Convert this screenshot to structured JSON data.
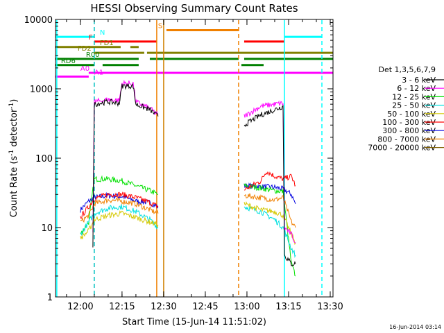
{
  "chart_data": {
    "type": "line",
    "title": "HESSI Observing Summary Count Rates",
    "xlabel": "Start Time (15-Jun-14 11:51:02)",
    "ylabel_main": "Count Rate (s",
    "ylabel_sup1": "-1",
    "ylabel_mid": " detector",
    "ylabel_sup2": "-1",
    "ylabel_end": ")",
    "footer_date": "16-Jun-2014 03:14",
    "y_scale": "log",
    "x_range": [
      "11:51:02",
      "13:31:00"
    ],
    "y_range": [
      1,
      10000
    ],
    "x_ticks": [
      {
        "label": "12:00",
        "t": "12:00"
      },
      {
        "label": "12:15",
        "t": "12:15"
      },
      {
        "label": "12:30",
        "t": "12:30"
      },
      {
        "label": "12:45",
        "t": "12:45"
      },
      {
        "label": "13:00",
        "t": "13:00"
      },
      {
        "label": "13:15",
        "t": "13:15"
      },
      {
        "label": "13:30",
        "t": "13:30"
      }
    ],
    "y_ticks": [
      {
        "label": "1",
        "v": 1
      },
      {
        "label": "10",
        "v": 10
      },
      {
        "label": "100",
        "v": 100
      },
      {
        "label": "1000",
        "v": 1000
      },
      {
        "label": "10000",
        "v": 10000
      }
    ],
    "legend": {
      "position": "right",
      "title": "Det 1,3,5,6,7,9",
      "entries": [
        {
          "label": "3 - 6 keV",
          "color": "#000000"
        },
        {
          "label": "6 - 12 keV",
          "color": "#ff00ff"
        },
        {
          "label": "12 - 25 keV",
          "color": "#00e000"
        },
        {
          "label": "25 - 50 keV",
          "color": "#00e0e0"
        },
        {
          "label": "50 - 100 keV",
          "color": "#d4c800"
        },
        {
          "label": "100 - 300 keV",
          "color": "#ff0000"
        },
        {
          "label": "300 - 800 keV",
          "color": "#0000e0"
        },
        {
          "label": "800 - 7000 keV",
          "color": "#f08000"
        },
        {
          "label": "7000 - 20000 keV",
          "color": "#806000"
        }
      ]
    },
    "series": [
      {
        "color": "#0000e0",
        "segments": [
          [
            [
              "12:00",
              "18"
            ],
            [
              "12:03",
              "24"
            ],
            [
              "12:05",
              "27"
            ],
            [
              "12:10",
              "29"
            ],
            [
              "12:15",
              "28"
            ],
            [
              "12:20",
              "24"
            ],
            [
              "12:25",
              "23"
            ],
            [
              "12:28",
              "20"
            ]
          ],
          [
            [
              "12:59",
              "40"
            ],
            [
              "13:05",
              "39"
            ],
            [
              "13:10",
              "38"
            ],
            [
              "13:13",
              "36"
            ],
            [
              "13:16",
              "30"
            ],
            [
              "13:17.5",
              "22"
            ]
          ]
        ]
      },
      {
        "color": "#00e000",
        "segments": [
          [
            [
              "12:00",
              "8"
            ],
            [
              "12:03",
              "12"
            ],
            [
              "12:05",
              "50"
            ],
            [
              "12:10",
              "50"
            ],
            [
              "12:15",
              "47"
            ],
            [
              "12:20",
              "40"
            ],
            [
              "12:25",
              "34"
            ],
            [
              "12:28",
              "30"
            ]
          ],
          [
            [
              "12:59",
              "40"
            ],
            [
              "13:05",
              "37"
            ],
            [
              "13:10",
              "34"
            ],
            [
              "13:13",
              "33"
            ],
            [
              "13:16",
              "3"
            ],
            [
              "13:17.5",
              "2"
            ]
          ]
        ]
      },
      {
        "color": "#ff0000",
        "segments": [
          [
            [
              "12:00",
              "14"
            ],
            [
              "12:03",
              "20"
            ],
            [
              "12:05",
              "26"
            ],
            [
              "12:10",
              "30"
            ],
            [
              "12:15",
              "30"
            ],
            [
              "12:20",
              "27"
            ],
            [
              "12:25",
              "23"
            ],
            [
              "12:28",
              "20"
            ]
          ],
          [
            [
              "12:59",
              "35"
            ],
            [
              "13:05",
              "47"
            ],
            [
              "13:07",
              "65"
            ],
            [
              "13:10",
              "55"
            ],
            [
              "13:13",
              "50"
            ],
            [
              "13:16",
              "55"
            ],
            [
              "13:17.5",
              "40"
            ]
          ]
        ]
      },
      {
        "color": "#f08000",
        "segments": [
          [
            [
              "12:00",
              "12"
            ],
            [
              "12:03",
              "15"
            ],
            [
              "12:05",
              "22"
            ],
            [
              "12:10",
              "25"
            ],
            [
              "12:15",
              "24"
            ],
            [
              "12:20",
              "22"
            ],
            [
              "12:25",
              "18"
            ],
            [
              "12:28",
              "16"
            ]
          ],
          [
            [
              "12:59",
              "29"
            ],
            [
              "13:05",
              "27"
            ],
            [
              "13:10",
              "25"
            ],
            [
              "13:13",
              "27"
            ],
            [
              "13:16",
              "12"
            ],
            [
              "13:17.5",
              "10"
            ]
          ]
        ]
      },
      {
        "color": "#00e0e0",
        "segments": [
          [
            [
              "12:00",
              "8"
            ],
            [
              "12:03",
              "12"
            ],
            [
              "12:05",
              "16"
            ],
            [
              "12:10",
              "19"
            ],
            [
              "12:15",
              "20"
            ],
            [
              "12:20",
              "17"
            ],
            [
              "12:25",
              "13"
            ],
            [
              "12:28",
              "10"
            ]
          ],
          [
            [
              "12:59",
              "20"
            ],
            [
              "13:05",
              "17"
            ],
            [
              "13:10",
              "13"
            ],
            [
              "13:13",
              "10"
            ],
            [
              "13:16",
              "5"
            ],
            [
              "13:17.5",
              "4"
            ]
          ]
        ]
      },
      {
        "color": "#d4c800",
        "segments": [
          [
            [
              "12:00",
              "7"
            ],
            [
              "12:03",
              "9"
            ],
            [
              "12:05",
              "13"
            ],
            [
              "12:10",
              "15"
            ],
            [
              "12:15",
              "16"
            ],
            [
              "12:20",
              "14"
            ],
            [
              "12:25",
              "12"
            ],
            [
              "12:28",
              "11"
            ]
          ],
          [
            [
              "12:59",
              "22"
            ],
            [
              "13:05",
              "18"
            ],
            [
              "13:10",
              "17"
            ],
            [
              "13:13",
              "15"
            ],
            [
              "13:16",
              "8"
            ],
            [
              "13:17.5",
              "6"
            ]
          ]
        ]
      },
      {
        "color": "#ff00ff",
        "segments": [
          [
            [
              "12:04.5",
              "9"
            ],
            [
              "12:05",
              "650"
            ],
            [
              "12:10",
              "700"
            ],
            [
              "12:14",
              "680"
            ],
            [
              "12:15",
              "1200"
            ],
            [
              "12:19",
              "1200"
            ],
            [
              "12:20",
              "650"
            ],
            [
              "12:25",
              "520"
            ],
            [
              "12:28",
              "420"
            ]
          ],
          [
            [
              "12:59",
              "400"
            ],
            [
              "13:05",
              "560"
            ],
            [
              "13:10",
              "600"
            ],
            [
              "13:13",
              "620"
            ],
            [
              "13:13.5",
              "10"
            ],
            [
              "13:16",
              "8"
            ],
            [
              "13:17.5",
              "6"
            ]
          ]
        ]
      },
      {
        "color": "#000000",
        "segments": [
          [
            [
              "12:04.5",
              "5"
            ],
            [
              "12:05",
              "600"
            ],
            [
              "12:10",
              "650"
            ],
            [
              "12:14",
              "620"
            ],
            [
              "12:15",
              "1100"
            ],
            [
              "12:19",
              "1100"
            ],
            [
              "12:20",
              "600"
            ],
            [
              "12:25",
              "500"
            ],
            [
              "12:28",
              "400"
            ]
          ],
          [
            [
              "12:59",
              "300"
            ],
            [
              "13:05",
              "420"
            ],
            [
              "13:10",
              "500"
            ],
            [
              "13:13",
              "560"
            ],
            [
              "13:13.5",
              "4"
            ],
            [
              "13:16",
              "3"
            ],
            [
              "13:17.5",
              "3"
            ]
          ]
        ]
      }
    ],
    "vertical_lines": [
      {
        "t": "11:51:30",
        "color": "#00ffff",
        "style": "solid"
      },
      {
        "t": "12:05",
        "color": "#00c0c0",
        "style": "dashed"
      },
      {
        "t": "12:27.5",
        "color": "#f08000",
        "style": "solid"
      },
      {
        "t": "12:30",
        "color": "#d08000",
        "style": "solid"
      },
      {
        "t": "12:57",
        "color": "#f08000",
        "style": "dashed"
      },
      {
        "t": "13:13.5",
        "color": "#00ffff",
        "style": "solid"
      },
      {
        "t": "13:27",
        "color": "#00ffff",
        "style": "dashed"
      }
    ],
    "flag_bars": [
      {
        "label": "N",
        "color": "#00ffff",
        "value": 5600,
        "segments": [
          [
            "11:51:02",
            "12:05"
          ],
          [
            "13:13.5",
            "13:27"
          ]
        ],
        "label_t": "12:07"
      },
      {
        "label": "S",
        "color": "#f08000",
        "value": 7000,
        "segments": [
          [
            "12:31",
            "12:57"
          ]
        ],
        "label_t": "12:28"
      },
      {
        "label": "F",
        "color": "#ff0000",
        "value": 4800,
        "segments": [
          [
            "12:05",
            "12:27.5"
          ],
          [
            "12:59",
            "13:13.5"
          ]
        ],
        "label_t": "12:03"
      },
      {
        "label": "FD1",
        "color": "#808000",
        "value": 4000,
        "segments": [
          [
            "11:51:02",
            "12:14.5"
          ],
          [
            "12:18",
            "12:21"
          ]
        ],
        "label_t": "12:07"
      },
      {
        "label": "FD2",
        "color": "#808000",
        "value": 3300,
        "segments": [
          [
            "12:05",
            "12:23"
          ],
          [
            "12:24",
            "13:31"
          ]
        ],
        "label_t": "11:59"
      },
      {
        "label": "R00",
        "color": "#008000",
        "value": 2700,
        "segments": [
          [
            "11:51:02",
            "12:21"
          ],
          [
            "12:25",
            "12:57"
          ],
          [
            "12:59",
            "13:31"
          ]
        ],
        "label_t": "12:02"
      },
      {
        "label": "RD6",
        "color": "#008000",
        "value": 2200,
        "segments": [
          [
            "11:51:02",
            "12:05"
          ],
          [
            "12:08",
            "12:21"
          ],
          [
            "12:58",
            "13:06"
          ]
        ],
        "label_t": "11:53"
      },
      {
        "label": "A0",
        "color": "#ff00ff",
        "value": 1700,
        "segments": [
          [
            "12:03",
            "13:31"
          ]
        ],
        "label_t": "12:00"
      },
      {
        "label": "A1",
        "color": "#ff00ff",
        "value": 1500,
        "segments": [
          [
            "11:51:02",
            "12:03"
          ]
        ],
        "label_t": "12:05"
      }
    ]
  }
}
